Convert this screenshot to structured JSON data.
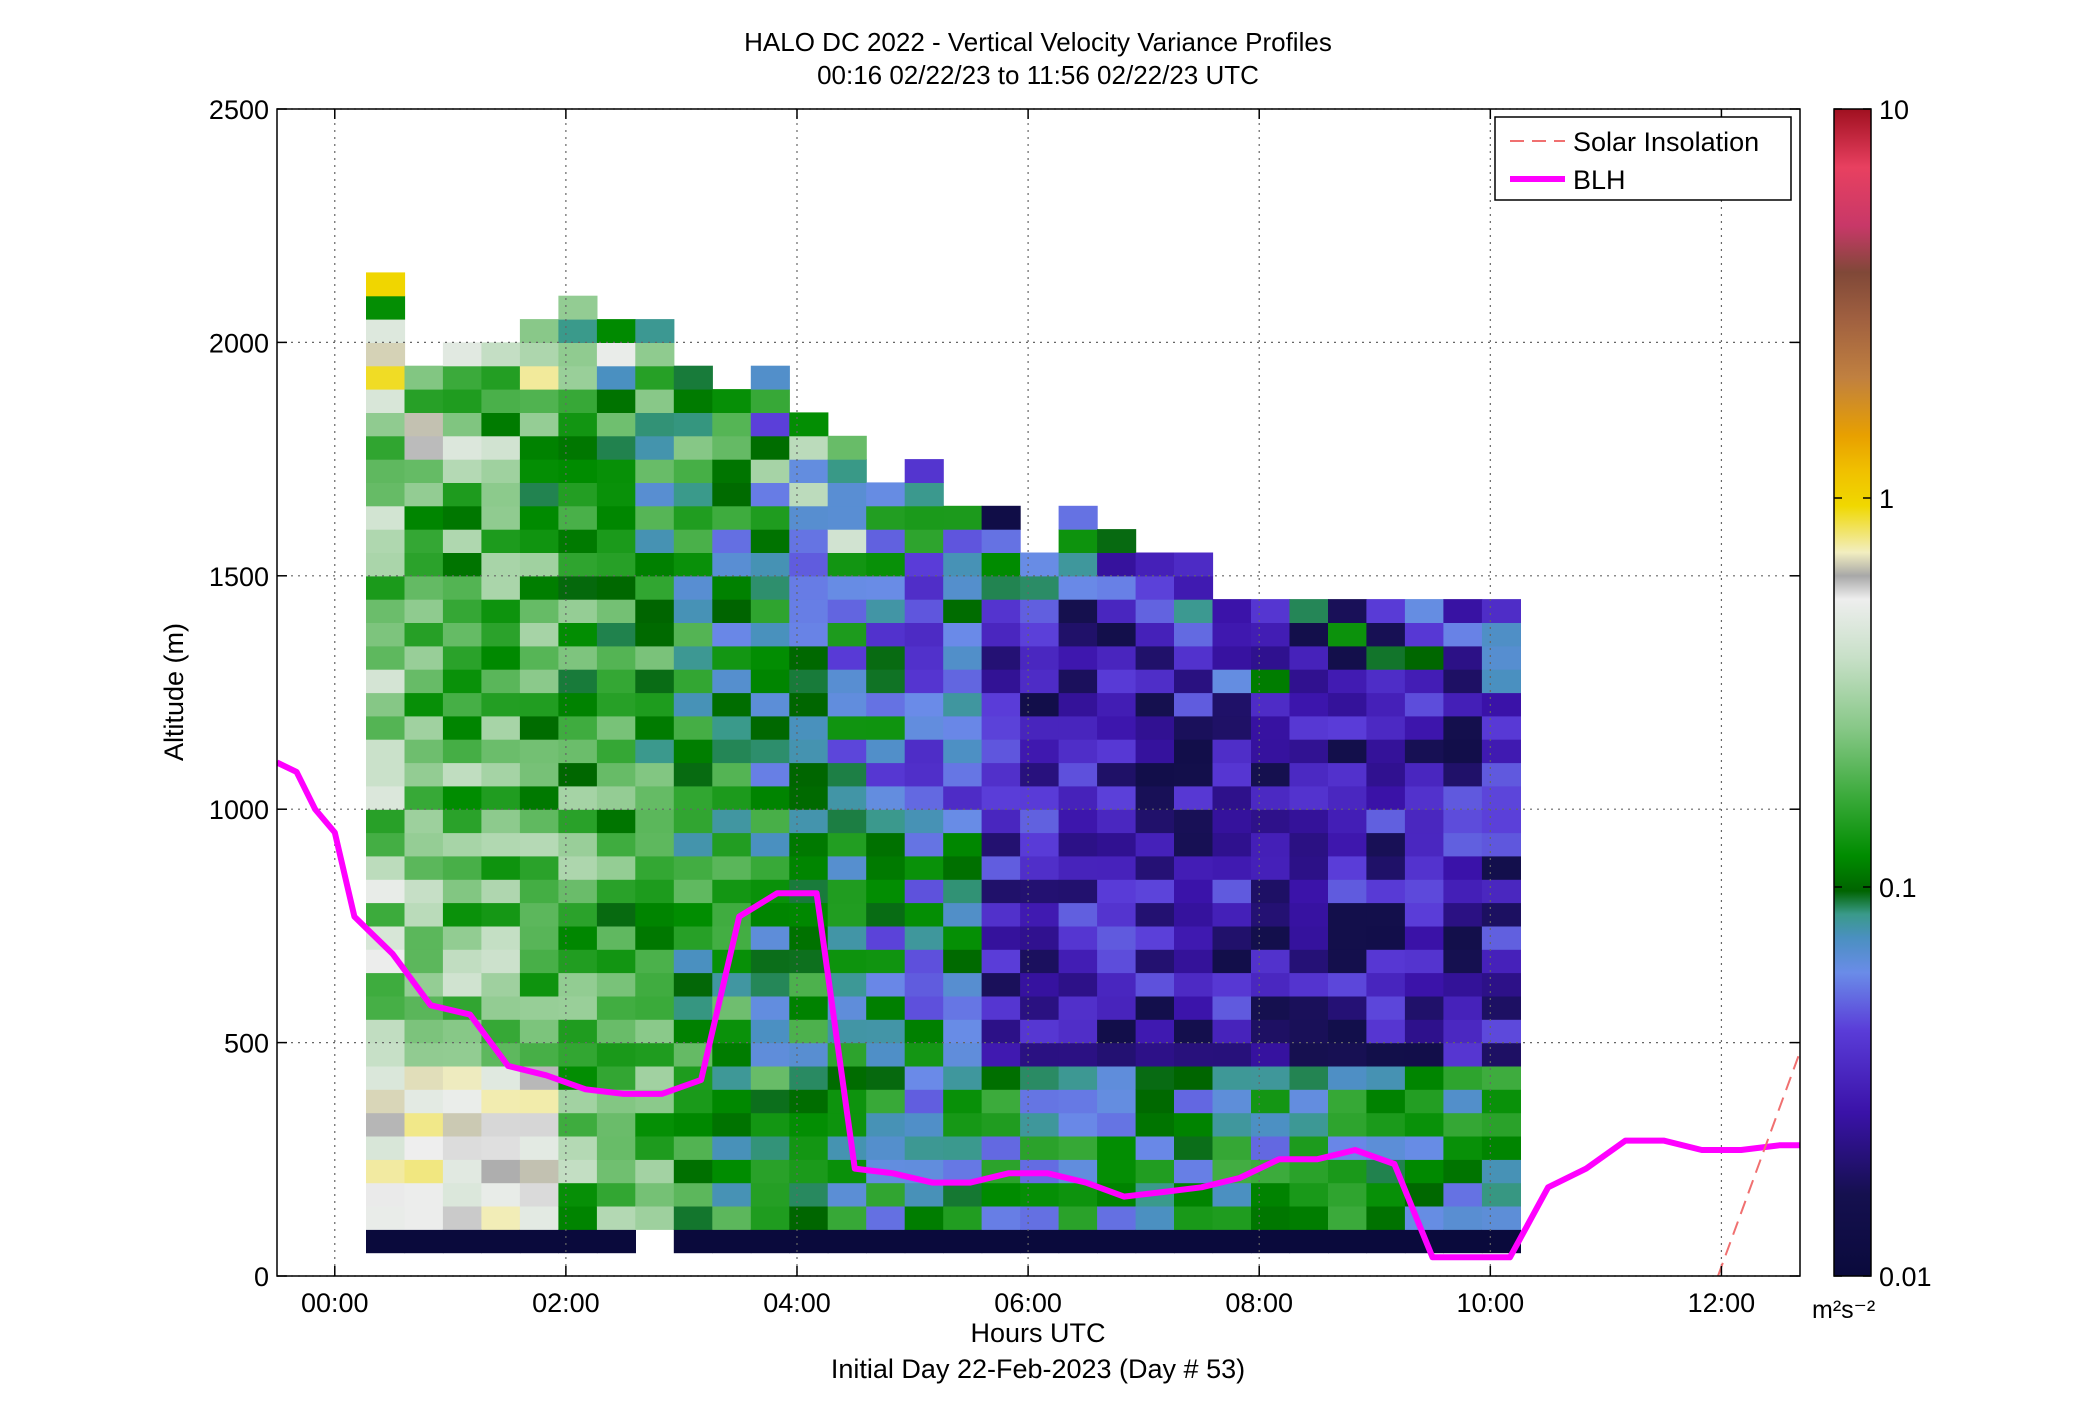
{
  "chart_data": {
    "type": "heatmap",
    "title": "HALO DC 2022 - Vertical Velocity Variance Profiles",
    "subtitle": "00:16 02/22/23 to 11:56 02/22/23  UTC",
    "xlabel": "Hours UTC",
    "xlabel2": "Initial Day 22-Feb-2023 (Day # 53)",
    "ylabel": "Altitude (m)",
    "xlim": [
      -0.5,
      12.68
    ],
    "ylim": [
      0,
      2500
    ],
    "x_ticks": [
      0,
      2,
      4,
      6,
      8,
      10,
      12
    ],
    "x_tick_labels": [
      "00:00",
      "02:00",
      "04:00",
      "06:00",
      "08:00",
      "10:00",
      "12:00"
    ],
    "y_ticks": [
      0,
      500,
      1000,
      1500,
      2000,
      2500
    ],
    "y_tick_labels": [
      "0",
      "500",
      "1000",
      "1500",
      "2000",
      "2500"
    ],
    "grid": true,
    "legend_position": "top-right",
    "legend": [
      {
        "label": "Solar Insolation",
        "style": "dashed",
        "color": "#f07070"
      },
      {
        "label": "BLH",
        "style": "solid",
        "color": "#ff00ff"
      }
    ],
    "colorbar": {
      "scale": "log",
      "range": [
        0.01,
        10
      ],
      "ticks": [
        0.01,
        0.1,
        1,
        10
      ],
      "tick_labels": [
        "0.01",
        "0.1",
        "1",
        "10"
      ],
      "units": "m²s⁻²"
    },
    "heatmap": {
      "time_start": 0.27,
      "time_step": 0.333,
      "altitude_start": 100,
      "altitude_step": 50,
      "columns": 30,
      "column_tops": [
        2150,
        1950,
        2000,
        2000,
        2050,
        2100,
        2050,
        2050,
        1950,
        1900,
        1950,
        1850,
        1800,
        1700,
        1750,
        1650,
        1650,
        1550,
        1650,
        1600,
        1550,
        1550,
        1450,
        1450,
        1450,
        1450,
        1450,
        1450,
        1450,
        1450
      ],
      "base_row_value": 0.01,
      "gap_columns": [
        7
      ]
    },
    "series": [
      {
        "name": "BLH",
        "x": [
          -0.5,
          -0.33,
          -0.17,
          0.0,
          0.17,
          0.5,
          0.83,
          1.17,
          1.5,
          1.83,
          2.17,
          2.5,
          2.83,
          3.17,
          3.5,
          3.83,
          4.17,
          4.5,
          4.83,
          5.17,
          5.5,
          5.83,
          6.17,
          6.5,
          6.83,
          7.17,
          7.5,
          7.83,
          8.17,
          8.5,
          8.83,
          9.17,
          9.5,
          9.83,
          10.17,
          10.5,
          10.83,
          11.17,
          11.5,
          11.83,
          12.17,
          12.5,
          12.68
        ],
        "y": [
          1100,
          1080,
          1000,
          950,
          770,
          690,
          580,
          560,
          450,
          430,
          400,
          390,
          390,
          420,
          770,
          820,
          820,
          230,
          220,
          200,
          200,
          220,
          220,
          200,
          170,
          180,
          190,
          210,
          250,
          250,
          270,
          240,
          40,
          40,
          40,
          190,
          230,
          290,
          290,
          270,
          270,
          280,
          280
        ]
      },
      {
        "name": "Solar Insolation",
        "x": [
          11.97,
          12.68
        ],
        "y": [
          0,
          480
        ]
      }
    ]
  }
}
